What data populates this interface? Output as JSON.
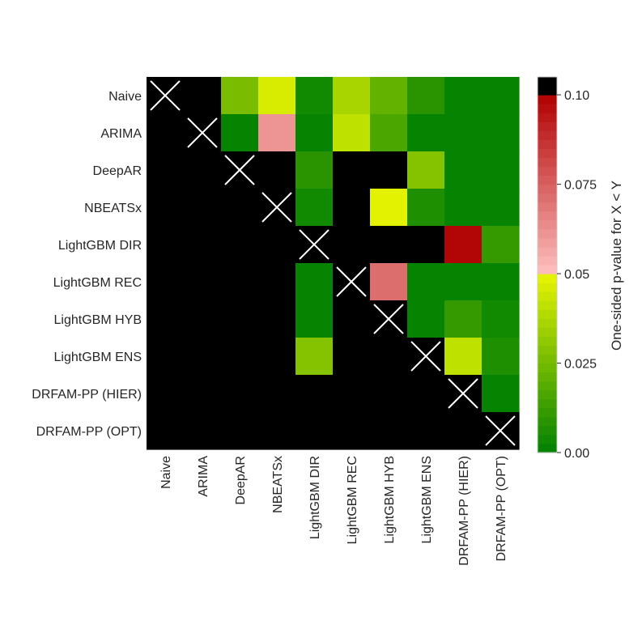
{
  "chart_data": {
    "type": "heatmap",
    "title": "",
    "xlabel": "",
    "ylabel": "",
    "labels": [
      "Naive",
      "ARIMA",
      "DeepAR",
      "NBEATSx",
      "LightGBM DIR",
      "LightGBM REC",
      "LightGBM HYB",
      "LightGBM ENS",
      "DRFAM-PP (HIER)",
      "DRFAM-PP (OPT)"
    ],
    "diagonal_marker": "×",
    "missing_color": "#000000",
    "values": [
      [
        null,
        null,
        0.027,
        0.047,
        0.003,
        0.035,
        0.02,
        0.008,
        0.002,
        0.002
      ],
      [
        null,
        null,
        0.002,
        0.06,
        0.002,
        0.04,
        0.015,
        0.002,
        0.002,
        0.002
      ],
      [
        null,
        null,
        null,
        null,
        0.008,
        null,
        null,
        0.028,
        0.002,
        0.002
      ],
      [
        null,
        null,
        null,
        null,
        0.003,
        null,
        0.049,
        0.007,
        0.002,
        0.002
      ],
      [
        null,
        null,
        null,
        null,
        null,
        null,
        null,
        null,
        0.099,
        0.012
      ],
      [
        null,
        null,
        null,
        null,
        0.002,
        null,
        0.072,
        0.002,
        0.002,
        0.002
      ],
      [
        null,
        null,
        null,
        null,
        0.002,
        null,
        null,
        0.002,
        0.012,
        0.003
      ],
      [
        null,
        null,
        null,
        null,
        0.028,
        null,
        null,
        null,
        0.042,
        0.007
      ],
      [
        null,
        null,
        null,
        null,
        null,
        null,
        null,
        null,
        null,
        0.002
      ],
      [
        null,
        null,
        null,
        null,
        null,
        null,
        null,
        null,
        null,
        null
      ]
    ],
    "colorbar": {
      "label": "One-sided p-value for X < Y",
      "vmin": 0.0,
      "vmax": 0.105,
      "ticks": [
        0.0,
        0.025,
        0.05,
        0.075,
        0.1
      ],
      "tick_labels": [
        "0.00",
        "0.025",
        "0.05",
        "0.075",
        "0.10"
      ],
      "segments": [
        {
          "from": 0.0,
          "to": 0.05,
          "start_color": "#008000",
          "end_color": "#e8f500"
        },
        {
          "from": 0.05,
          "to": 0.1,
          "start_color": "#ffc0c0",
          "end_color": "#b00000"
        },
        {
          "from": 0.1,
          "to": 0.105,
          "start_color": "#000000",
          "end_color": "#000000"
        }
      ],
      "bins": 42
    }
  }
}
